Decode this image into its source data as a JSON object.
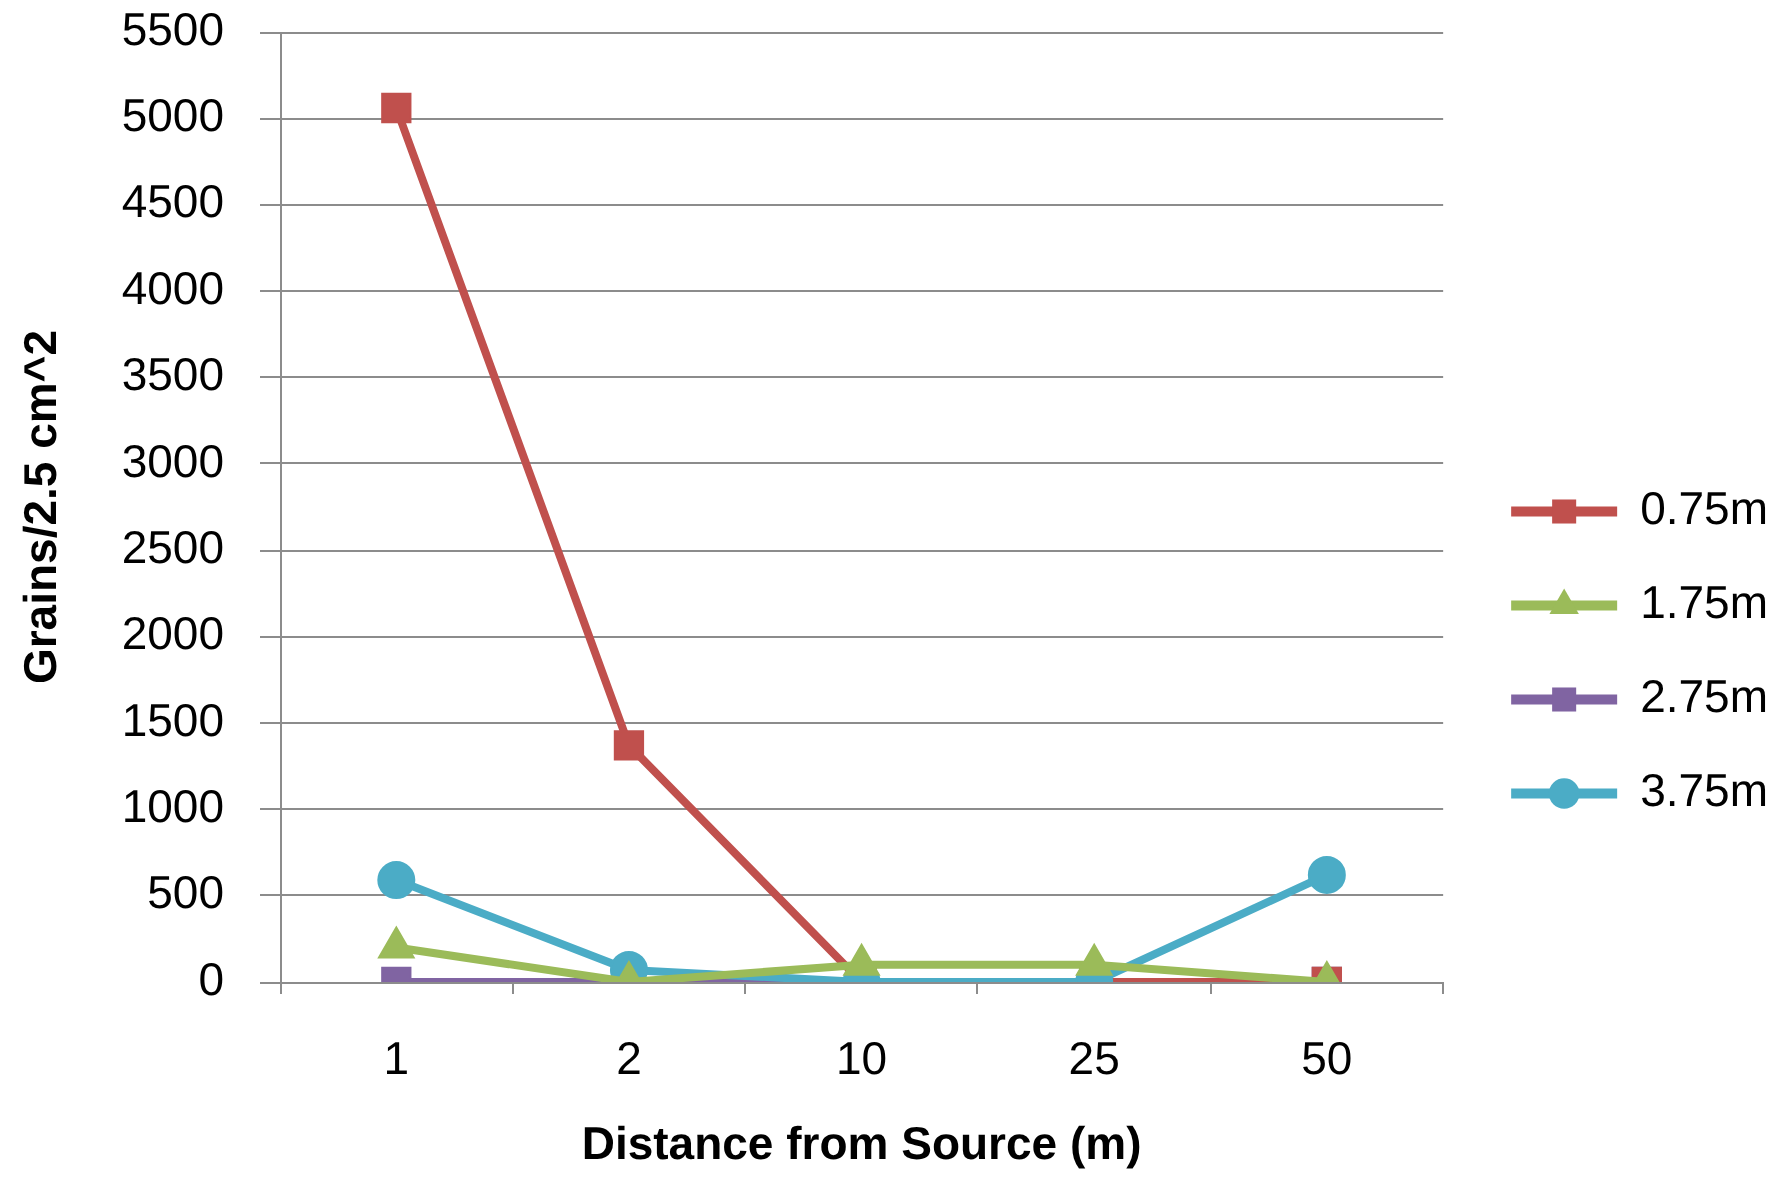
{
  "chart_data": {
    "type": "line",
    "xlabel": "Distance from Source (m)",
    "ylabel": "Grains/2.5 cm^2",
    "categories": [
      "1",
      "2",
      "10",
      "25",
      "50"
    ],
    "series": [
      {
        "name": "0.75m",
        "color": "#c0504d",
        "marker": "square",
        "values": [
          5060,
          1370,
          0,
          0,
          0
        ]
      },
      {
        "name": "1.75m",
        "color": "#9bbb59",
        "marker": "triangle",
        "values": [
          200,
          0,
          100,
          100,
          0
        ]
      },
      {
        "name": "2.75m",
        "color": "#8064a2",
        "marker": "square",
        "values": [
          0,
          0,
          0,
          0,
          0
        ]
      },
      {
        "name": "3.75m",
        "color": "#4bacc6",
        "marker": "circle",
        "values": [
          590,
          70,
          0,
          0,
          620
        ]
      }
    ],
    "ylim": [
      0,
      5500
    ],
    "yticks": [
      0,
      500,
      1000,
      1500,
      2000,
      2500,
      3000,
      3500,
      4000,
      4500,
      5000,
      5500
    ],
    "grid": "y",
    "legend": "right"
  }
}
